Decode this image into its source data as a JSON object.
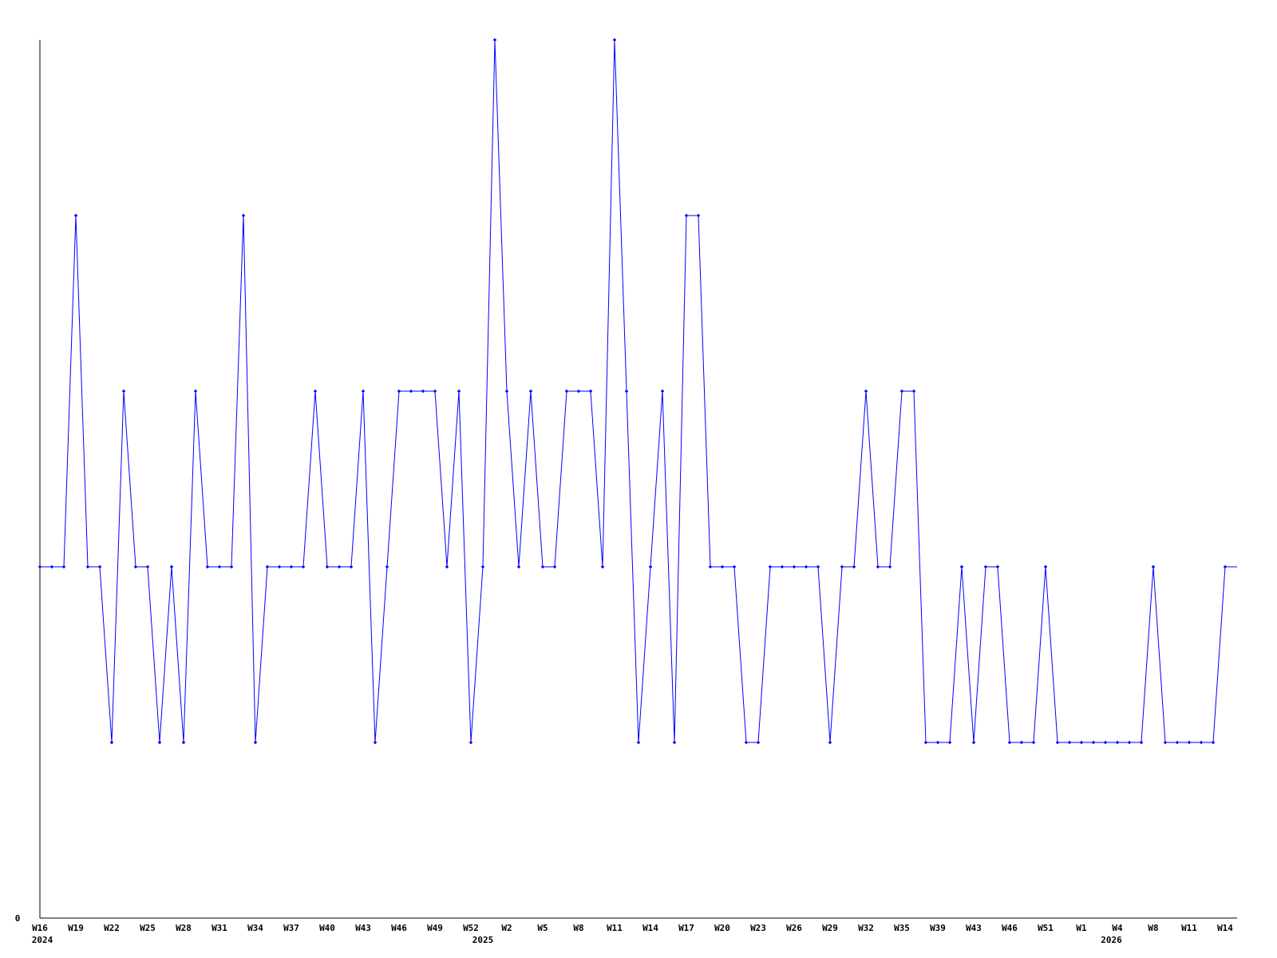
{
  "chart_data": {
    "type": "line",
    "title": "",
    "xlabel": "",
    "ylabel": "",
    "ylim": [
      0,
      5
    ],
    "y_tick_labels": [
      "0"
    ],
    "grid": false,
    "legend": "none",
    "line_color": "#0000ff",
    "axis_color": "#000000",
    "x_tick_labels": [
      "W16",
      "W19",
      "W22",
      "W25",
      "W28",
      "W31",
      "W34",
      "W37",
      "W40",
      "W43",
      "W46",
      "W49",
      "W52",
      "W2",
      "W5",
      "W8",
      "W11",
      "W14",
      "W17",
      "W20",
      "W23",
      "W26",
      "W29",
      "W32",
      "W35",
      "W39",
      "W43",
      "W46",
      "W51",
      "W1",
      "W4",
      "W8",
      "W11",
      "W14"
    ],
    "year_labels": [
      {
        "label": "2024",
        "at_point": 0
      },
      {
        "label": "2025",
        "at_point": 37
      },
      {
        "label": "2026",
        "at_point": 89.5
      }
    ],
    "series": [
      {
        "values": [
          2,
          2,
          2,
          4,
          2,
          2,
          1,
          3,
          2,
          2,
          1,
          2,
          1,
          3,
          2,
          2,
          2,
          4,
          1,
          2,
          2,
          2,
          2,
          3,
          2,
          2,
          2,
          3,
          1,
          2,
          3,
          3,
          3,
          3,
          2,
          3,
          1,
          2,
          5,
          3,
          2,
          3,
          2,
          2,
          3,
          3,
          3,
          2,
          5,
          3,
          1,
          2,
          3,
          1,
          4,
          4,
          2,
          2,
          2,
          1,
          1,
          2,
          2,
          2,
          2,
          2,
          1,
          2,
          2,
          3,
          2,
          2,
          3,
          3,
          1,
          1,
          1,
          2,
          1,
          2,
          2,
          1,
          1,
          1,
          2,
          1,
          1,
          1,
          1,
          1,
          1,
          1,
          1,
          2,
          1,
          1,
          1,
          1,
          1,
          2,
          2
        ]
      }
    ]
  }
}
